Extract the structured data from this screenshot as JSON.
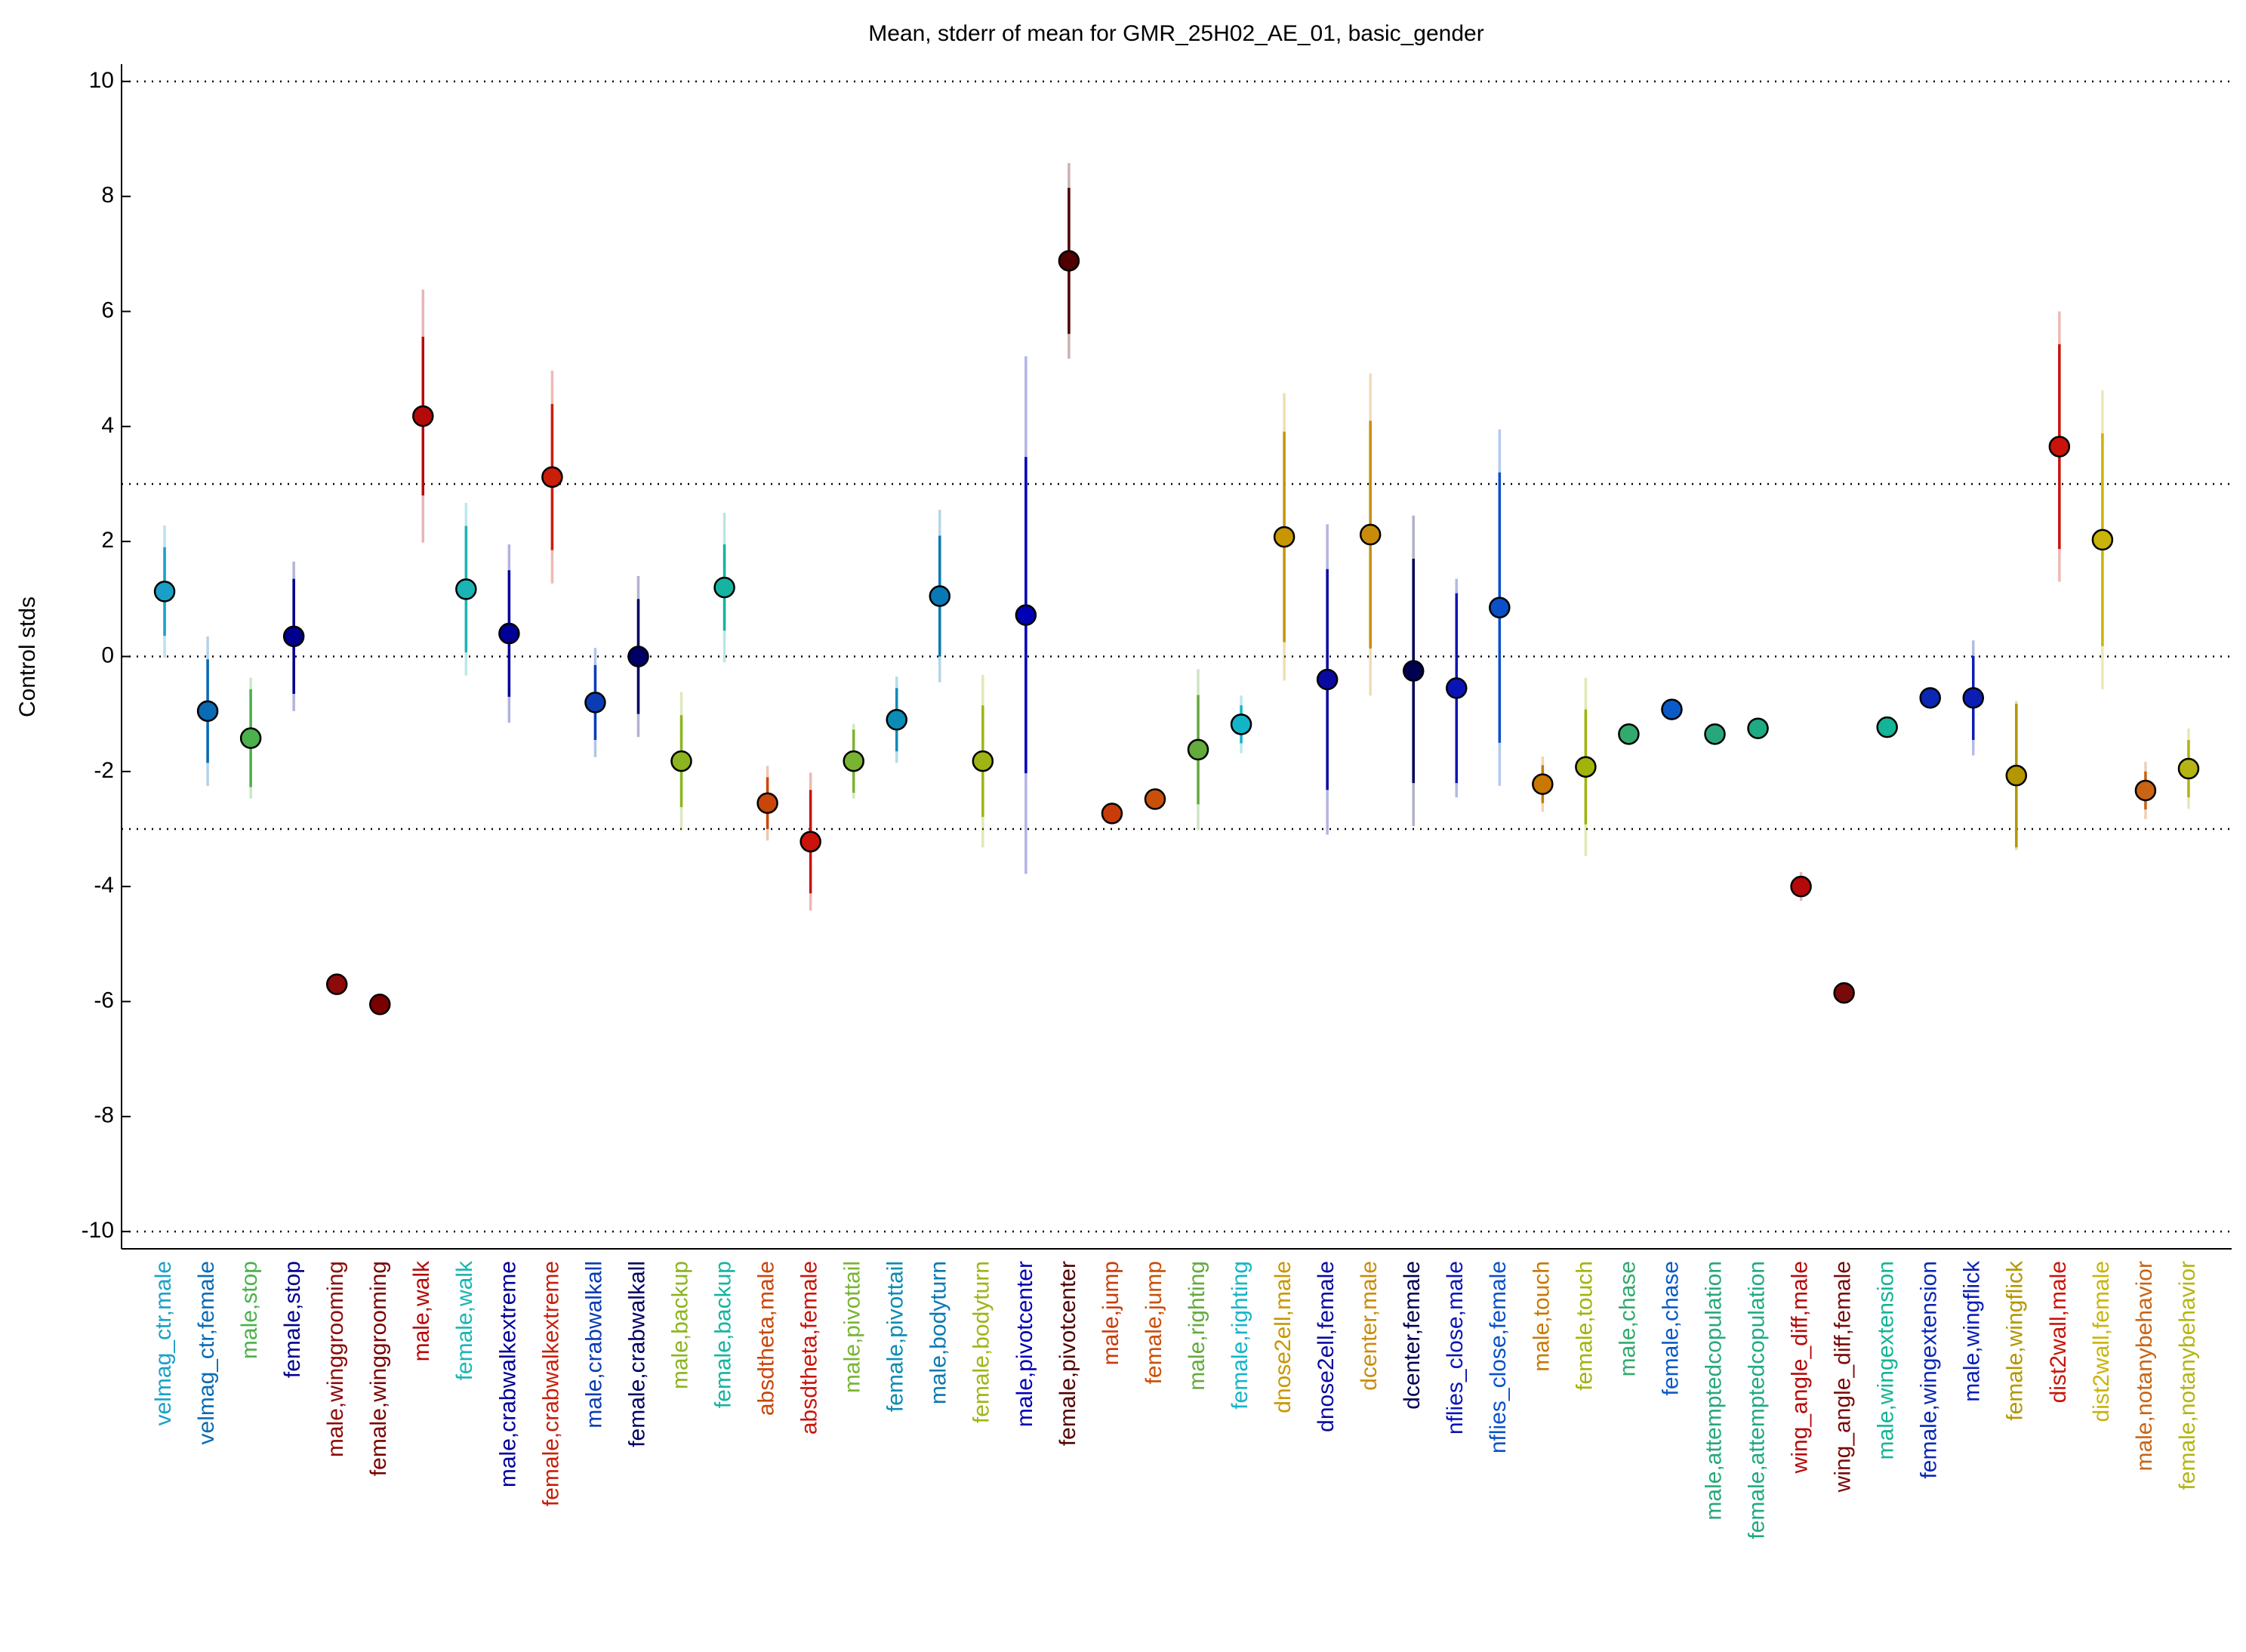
{
  "chart_data": {
    "type": "errorbar",
    "title": "Mean, stderr of mean for GMR_25H02_AE_01, basic_gender",
    "ylabel": "Control stds",
    "categories": [
      "velmag_ctr,male",
      "velmag_ctr,female",
      "male,stop",
      "female,stop",
      "male,winggrooming",
      "female,winggrooming",
      "male,walk",
      "female,walk",
      "male,crabwalkextreme",
      "female,crabwalkextreme",
      "male,crabwalkall",
      "female,crabwalkall",
      "male,backup",
      "female,backup",
      "absdtheta,male",
      "absdtheta,female",
      "male,pivottail",
      "female,pivottail",
      "male,bodyturn",
      "female,bodyturn",
      "male,pivotcenter",
      "female,pivotcenter",
      "male,jump",
      "female,jump",
      "male,righting",
      "female,righting",
      "dnose2ell,male",
      "dnose2ell,female",
      "dcenter,male",
      "dcenter,female",
      "nflies_close,male",
      "nflies_close,female",
      "male,touch",
      "female,touch",
      "male,chase",
      "female,chase",
      "male,attemptedcopulation",
      "female,attemptedcopulation",
      "wing_angle_diff,male",
      "wing_angle_diff,female",
      "male,wingextension",
      "female,wingextension",
      "male,wingflick",
      "female,wingflick",
      "dist2wall,male",
      "dist2wall,female",
      "male,notanybehavior",
      "female,notanybehavior"
    ],
    "values": [
      1.13,
      -0.95,
      -1.42,
      0.35,
      -5.7,
      -6.05,
      4.18,
      1.17,
      0.4,
      3.12,
      -0.8,
      0.0,
      -1.82,
      1.2,
      -2.55,
      -3.22,
      -1.82,
      -1.1,
      1.05,
      -1.82,
      0.72,
      6.88,
      -2.73,
      -2.48,
      -1.62,
      -1.18,
      2.08,
      -0.4,
      2.12,
      -0.25,
      -0.55,
      0.85,
      -2.22,
      -1.92,
      -1.35,
      -0.92,
      -1.35,
      -1.25,
      -4.0,
      -5.85,
      -1.23,
      -0.72,
      -0.72,
      -2.07,
      3.65,
      2.03,
      -2.33,
      -1.95
    ],
    "errors": [
      0.77,
      0.9,
      0.85,
      1.0,
      0,
      0,
      1.38,
      1.1,
      1.1,
      1.27,
      0.65,
      1.0,
      0.8,
      0.75,
      0.45,
      0.9,
      0.55,
      0.55,
      1.05,
      0.97,
      2.75,
      1.27,
      0,
      0,
      0.95,
      0.33,
      1.83,
      1.92,
      1.98,
      1.95,
      1.65,
      2.35,
      0.33,
      1.0,
      0,
      0.12,
      0,
      0,
      0.15,
      0,
      0,
      0,
      0.73,
      1.25,
      1.78,
      1.85,
      0.33,
      0.5
    ],
    "outer_errors": [
      1.15,
      1.3,
      1.05,
      1.3,
      0,
      0,
      2.2,
      1.5,
      1.55,
      1.85,
      0.95,
      1.4,
      1.2,
      1.3,
      0.65,
      1.2,
      0.65,
      0.75,
      1.5,
      1.5,
      4.5,
      1.7,
      0,
      0,
      1.4,
      0.5,
      2.5,
      2.7,
      2.8,
      2.7,
      1.9,
      3.1,
      0.48,
      1.55,
      0,
      0.17,
      0,
      0,
      0.25,
      0,
      0,
      0,
      1.0,
      1.3,
      2.35,
      2.6,
      0.5,
      0.7
    ],
    "colors": [
      "#1aa0c8",
      "#0a6ab4",
      "#4cb04c",
      "#00008c",
      "#8c0a0a",
      "#780000",
      "#b40a0a",
      "#1ab4b4",
      "#000096",
      "#c81e0a",
      "#0a3cb4",
      "#000064",
      "#8cb41e",
      "#14b4a0",
      "#c8460a",
      "#c8140a",
      "#78b432",
      "#0a8cb4",
      "#0a78b4",
      "#a0b414",
      "#0000b4",
      "#500000",
      "#c83c0a",
      "#c8500a",
      "#64aa3c",
      "#14b4c8",
      "#c89600",
      "#0a0aa0",
      "#c88c0a",
      "#000050",
      "#0a14b4",
      "#0a50c8",
      "#c87800",
      "#a0b40a",
      "#32aa6e",
      "#0a5ac8",
      "#28a87a",
      "#1eaa82",
      "#b40a0a",
      "#780a0a",
      "#14b496",
      "#0a28b4",
      "#0a1eb4",
      "#b49600",
      "#c8140a",
      "#c8b40a",
      "#c86414",
      "#b4b414"
    ],
    "ylim": [
      -10.3,
      10.3
    ],
    "yticks": [
      -10,
      -8,
      -6,
      -4,
      -2,
      0,
      2,
      4,
      6,
      8,
      10
    ],
    "reference_lines": [
      10,
      3,
      0,
      -3,
      -10
    ]
  }
}
